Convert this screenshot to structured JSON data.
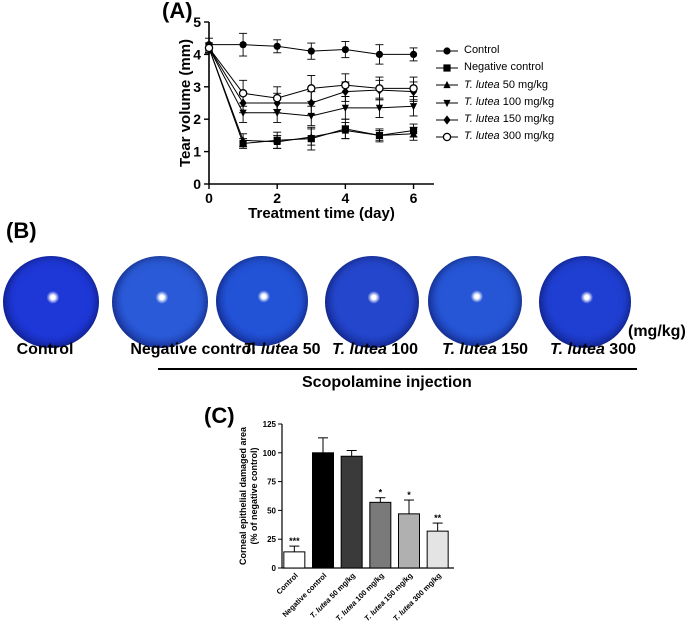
{
  "panels": {
    "a_label": "(A)",
    "b_label": "(B)",
    "c_label": "(C)"
  },
  "panel_b": {
    "labels": [
      "Control",
      "Negative control",
      "T. lutea 50",
      "T. lutea 100",
      "T. lutea 150",
      "T. lutea 300"
    ],
    "label_italic": [
      "",
      "",
      "T. lutea",
      "T. lutea",
      "T. lutea",
      "T. lutea"
    ],
    "label_rest": [
      "Control",
      "Negative control",
      " 50",
      " 100",
      " 150",
      " 300"
    ],
    "unit": "(mg/kg)",
    "injection": "Scopolamine injection"
  },
  "chart_data": [
    {
      "type": "line",
      "ylabel": "Tear volume (mm)",
      "xlabel": "Treatment time (day)",
      "x": [
        0,
        1,
        2,
        3,
        4,
        5,
        6
      ],
      "xticks": [
        0,
        2,
        4,
        6
      ],
      "yticks": [
        0,
        1,
        2,
        3,
        4,
        5
      ],
      "xlim": [
        0,
        6.6
      ],
      "ylim": [
        0,
        5
      ],
      "series": [
        {
          "name": "Control",
          "italic": "",
          "rest": "Control",
          "marker": "circle",
          "values": [
            4.3,
            4.3,
            4.25,
            4.1,
            4.15,
            4.0,
            4.0
          ],
          "err": [
            0.2,
            0.35,
            0.2,
            0.25,
            0.25,
            0.3,
            0.2
          ]
        },
        {
          "name": "Negative control",
          "italic": "",
          "rest": "Negative control",
          "marker": "square",
          "values": [
            4.2,
            1.25,
            1.35,
            1.4,
            1.7,
            1.5,
            1.65
          ],
          "err": [
            0.15,
            0.15,
            0.25,
            0.35,
            0.3,
            0.15,
            0.2
          ]
        },
        {
          "name": "T. lutea 50 mg/kg",
          "italic": "T. lutea",
          "rest": " 50 mg/kg",
          "marker": "triangle-up",
          "values": [
            4.2,
            1.35,
            1.3,
            1.45,
            1.65,
            1.5,
            1.55
          ],
          "err": [
            0.15,
            0.2,
            0.2,
            0.25,
            0.25,
            0.2,
            0.2
          ]
        },
        {
          "name": "T. lutea 100 mg/kg",
          "italic": "T. lutea",
          "rest": " 100 mg/kg",
          "marker": "triangle-down",
          "values": [
            4.2,
            2.2,
            2.2,
            2.1,
            2.35,
            2.35,
            2.4
          ],
          "err": [
            0.15,
            0.3,
            0.3,
            0.3,
            0.35,
            0.3,
            0.3
          ]
        },
        {
          "name": "T. lutea 150 mg/kg",
          "italic": "T. lutea",
          "rest": " 150 mg/kg",
          "marker": "diamond",
          "values": [
            4.2,
            2.5,
            2.5,
            2.5,
            2.85,
            2.9,
            2.85
          ],
          "err": [
            0.15,
            0.3,
            0.3,
            0.35,
            0.3,
            0.3,
            0.3
          ]
        },
        {
          "name": "T. lutea 300 mg/kg",
          "italic": "T. lutea",
          "rest": " 300 mg/kg",
          "marker": "open-circle",
          "values": [
            4.2,
            2.8,
            2.65,
            2.95,
            3.05,
            2.95,
            2.95
          ],
          "err": [
            0.15,
            0.4,
            0.35,
            0.4,
            0.35,
            0.35,
            0.35
          ]
        }
      ]
    },
    {
      "type": "bar",
      "ylabel_line1": "Corneal epithelial damaged area",
      "ylabel_line2": "(% of negative control)",
      "categories": [
        "Control",
        "Negative control",
        "T. lutea 50 mg/kg",
        "T. lutea 100 mg/kg",
        "T. lutea 150 mg/kg",
        "T. lutea 300 mg/kg"
      ],
      "cat_italic": [
        "",
        "",
        "T. lutea",
        "T. lutea",
        "T. lutea",
        "T. lutea"
      ],
      "cat_rest": [
        "Control",
        "Negative control",
        " 50 mg/kg",
        " 100 mg/kg",
        " 150 mg/kg",
        " 300 mg/kg"
      ],
      "values": [
        14,
        100,
        97,
        57,
        47,
        32
      ],
      "errors": [
        5,
        13,
        5,
        4,
        12,
        7
      ],
      "significance": [
        "***",
        "",
        "",
        "*",
        "*",
        "**"
      ],
      "colors": [
        "#ffffff",
        "#000000",
        "#3a3a3a",
        "#7a7a7a",
        "#b0b0b0",
        "#e4e4e4"
      ],
      "yticks": [
        0,
        25,
        50,
        75,
        100,
        125
      ],
      "ylim": [
        0,
        125
      ]
    }
  ]
}
